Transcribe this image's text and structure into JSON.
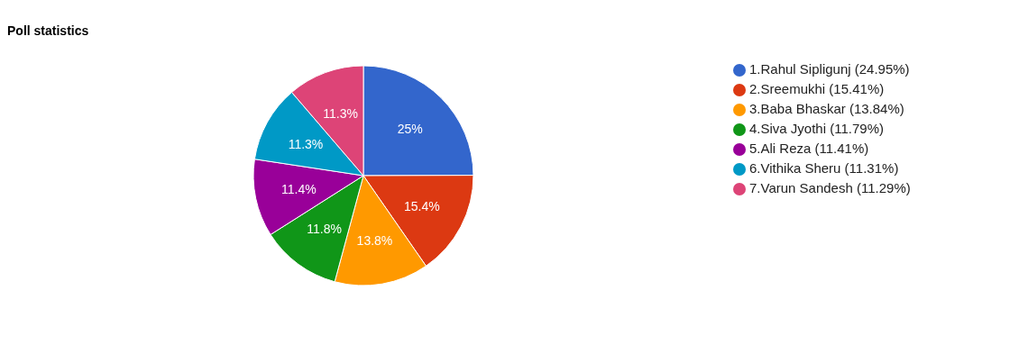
{
  "chart_data": {
    "type": "pie",
    "title": "Poll statistics",
    "categories": [
      "1.Rahul Sipligunj (24.95%)",
      "2.Sreemukhi (15.41%)",
      "3.Baba Bhaskar (13.84%)",
      "4.Siva Jyothi (11.79%)",
      "5.Ali Reza (11.41%)",
      "6.Vithika Sheru (11.31%)",
      "7.Varun Sandesh (11.29%)"
    ],
    "values": [
      24.95,
      15.41,
      13.84,
      11.79,
      11.41,
      11.31,
      11.29
    ],
    "colors": [
      "#3366cc",
      "#dc3912",
      "#ff9900",
      "#109618",
      "#990099",
      "#0099c6",
      "#dd4477"
    ],
    "value_labels": [
      "25%",
      "15.4%",
      "13.8%",
      "11.8%",
      "11.4%",
      "11.3%",
      "11.3%"
    ],
    "legend": "right"
  }
}
